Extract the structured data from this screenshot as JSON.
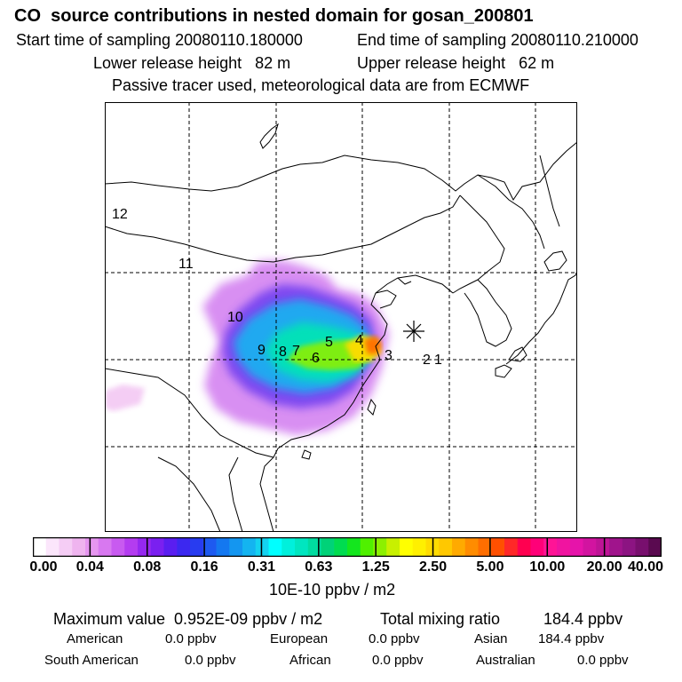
{
  "header": {
    "title": "CO  source contributions in nested domain for gosan_200801",
    "start_time": "Start time of sampling 20080110.180000",
    "end_time": "End time of sampling 20080110.210000",
    "lower_height": "Lower release height   82 m",
    "upper_height": "Upper release height   62 m",
    "note": "Passive tracer used, meteorological data are from ECMWF"
  },
  "map": {
    "region_labels": [
      "12",
      "11",
      "10",
      "9",
      "8",
      "7",
      "6",
      "5",
      "4",
      "3",
      "2",
      "1"
    ],
    "receptor_marker": "asterisk"
  },
  "colorbar": {
    "ticks": [
      "0.00",
      "0.04",
      "0.08",
      "0.16",
      "0.31",
      "0.63",
      "1.25",
      "2.50",
      "5.00",
      "10.00",
      "20.00",
      "40.00"
    ],
    "units": "10E-10 ppbv / m2",
    "colors": [
      "#ffffff",
      "#fbe6fb",
      "#f5cdf5",
      "#efb4ef",
      "#e696f0",
      "#d878f0",
      "#c85af0",
      "#b43cf0",
      "#9628f0",
      "#7a20f0",
      "#5a1ef0",
      "#3c28f0",
      "#283cf0",
      "#1e5af0",
      "#1478f0",
      "#1496f0",
      "#14b4f0",
      "#14d2f0",
      "#00ffff",
      "#00f0dc",
      "#00e6c0",
      "#00dca0",
      "#00d278",
      "#00dc50",
      "#14e61e",
      "#50f000",
      "#8cf000",
      "#c8f000",
      "#ffff00",
      "#fff000",
      "#ffdc00",
      "#ffc800",
      "#ffaa00",
      "#ff8c00",
      "#ff6e00",
      "#ff5000",
      "#ff2828",
      "#ff0050",
      "#ff0078",
      "#ff1496",
      "#f014a0",
      "#e614aa",
      "#d214a0",
      "#be1496",
      "#a0148c",
      "#8c1482",
      "#780f6e",
      "#5a0a50"
    ]
  },
  "stats": {
    "max_label": "Maximum value  0.952E-09 ppbv / m2",
    "total_label": "Total mixing ratio",
    "total_value": "184.4 ppbv",
    "american_label": "American",
    "american_value": "0.0 ppbv",
    "european_label": "European",
    "european_value": "0.0 ppbv",
    "asian_label": "Asian",
    "asian_value": "184.4 ppbv",
    "south_american_label": "South American",
    "south_american_value": "0.0 ppbv",
    "african_label": "African",
    "african_value": "0.0 ppbv",
    "australian_label": "Australian",
    "australian_value": "0.0 ppbv"
  }
}
